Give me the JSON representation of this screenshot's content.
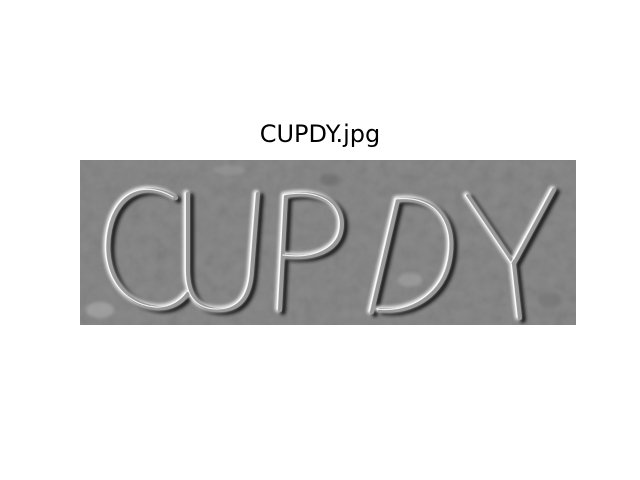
{
  "figure": {
    "title": "CUPDY.jpg",
    "captcha_image": {
      "visible_text": "CUPDY",
      "style": "embossed grayscale captcha",
      "colors": {
        "base": "#8a8a8a",
        "highlight": "#f0f0f0",
        "shadow": "#1e1e1e",
        "figure_background": "#ffffff"
      }
    }
  }
}
